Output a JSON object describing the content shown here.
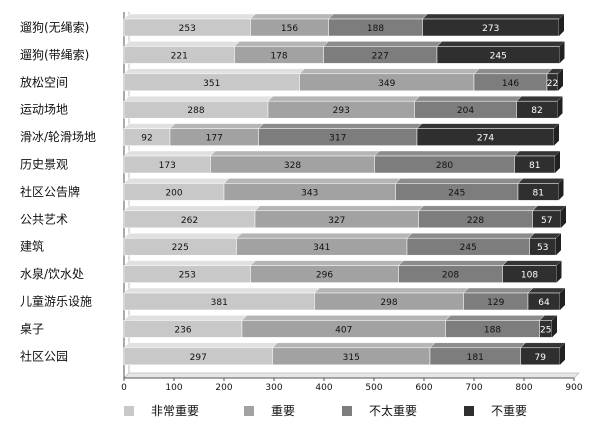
{
  "chart_data": {
    "type": "bar",
    "orientation": "horizontal",
    "stacked": true,
    "categories": [
      "遛狗(无绳索)",
      "遛狗(带绳索)",
      "放松空间",
      "运动场地",
      "滑冰/轮滑场地",
      "历史景观",
      "社区公告牌",
      "公共艺术",
      "建筑",
      "水泉/饮水处",
      "儿童游乐设施",
      "桌子",
      "社区公园"
    ],
    "series": [
      {
        "name": "非常重要",
        "color": "#c8c8c8",
        "values": [
          253,
          221,
          351,
          288,
          92,
          173,
          200,
          262,
          225,
          253,
          381,
          236,
          297
        ]
      },
      {
        "name": "重要",
        "color": "#a2a2a2",
        "values": [
          156,
          178,
          349,
          293,
          177,
          328,
          343,
          327,
          341,
          296,
          298,
          407,
          315
        ]
      },
      {
        "name": "不太重要",
        "color": "#7d7d7d",
        "values": [
          188,
          227,
          146,
          204,
          317,
          280,
          245,
          228,
          245,
          208,
          129,
          188,
          181
        ]
      },
      {
        "name": "不重要",
        "color": "#2f2f2f",
        "values": [
          273,
          245,
          22,
          82,
          274,
          81,
          81,
          57,
          53,
          108,
          64,
          25,
          79
        ]
      }
    ],
    "xlim": [
      0,
      900
    ],
    "xticks": [
      0,
      100,
      200,
      300,
      400,
      500,
      600,
      700,
      800,
      900
    ],
    "legend_position": "bottom",
    "grid": false
  }
}
